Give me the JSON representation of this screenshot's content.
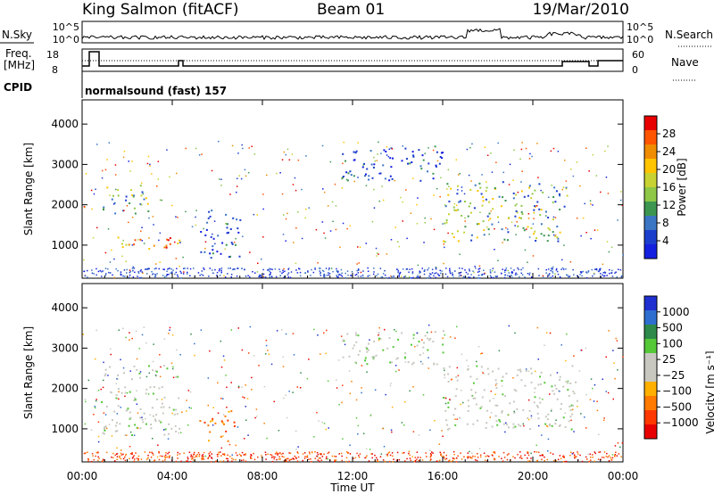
{
  "header": {
    "station": "King Salmon (fitACF)",
    "beam": "Beam 01",
    "date": "19/Mar/2010"
  },
  "top_panels": {
    "nsky_label": "N.Sky",
    "nsky_ticks": [
      "10^5",
      "10^0"
    ],
    "nsearch_label": "N.Search",
    "nsearch_ticks": [
      "10^5",
      "10^0"
    ],
    "freq_label": "Freq.",
    "freq_unit": "[MHz]",
    "freq_ticks": [
      "18",
      "8"
    ],
    "nave_label": "Nave",
    "nave_ticks": [
      "60",
      "0"
    ],
    "cpid_label": "CPID",
    "cpid_value": "normalsound (fast) 157"
  },
  "chart_data": [
    {
      "type": "heatmap",
      "name": "power",
      "ylabel": "Slant Range [km]",
      "y_ticks": [
        "4000",
        "3000",
        "2000",
        "1000"
      ],
      "ylim": [
        180,
        4600
      ],
      "xlim_hours": [
        0,
        24
      ],
      "colorbar": {
        "label": "Power [dB]",
        "ticks": [
          "28",
          "24",
          "20",
          "16",
          "12",
          "8",
          "4"
        ],
        "colors": [
          "#e80000",
          "#ff5500",
          "#f08c00",
          "#ffc400",
          "#c8d232",
          "#8ec846",
          "#3c9650",
          "#3a76c4",
          "#1b3ecc",
          "#1420e0"
        ]
      },
      "regions": [
        {
          "t": [
            1.0,
            4.3
          ],
          "r": [
            900,
            1250
          ],
          "level": "high"
        },
        {
          "t": [
            0.9,
            3.0
          ],
          "r": [
            1700,
            2500
          ],
          "level": "medium"
        },
        {
          "t": [
            5.0,
            7.0
          ],
          "r": [
            700,
            1900
          ],
          "level": "low-medium"
        },
        {
          "t": [
            11.5,
            16.0
          ],
          "r": [
            2600,
            3500
          ],
          "level": "low"
        },
        {
          "t": [
            16.0,
            21.5
          ],
          "r": [
            1100,
            2600
          ],
          "level": "medium"
        }
      ]
    },
    {
      "type": "heatmap",
      "name": "velocity",
      "ylabel": "Slant Range [km]",
      "y_ticks": [
        "4000",
        "3000",
        "2000",
        "1000"
      ],
      "ylim": [
        180,
        4600
      ],
      "xlim_hours": [
        0,
        24
      ],
      "colorbar": {
        "label": "Velocity [m s⁻¹]",
        "ticks": [
          "1000",
          "500",
          "100",
          "25",
          "−25",
          "−100",
          "−500",
          "−1000"
        ],
        "colors": [
          "#1f2fd0",
          "#2e6ed0",
          "#2e8a4a",
          "#55c838",
          "#c8c8c0",
          "#c8c8c0",
          "#ffb000",
          "#ff7a00",
          "#ff3800",
          "#e80000"
        ]
      },
      "regions": [
        {
          "t": [
            0.8,
            4.3
          ],
          "r": [
            850,
            2600
          ],
          "level": "near zero"
        },
        {
          "t": [
            5.2,
            6.8
          ],
          "r": [
            700,
            1500
          ],
          "level": "-100 to -500"
        },
        {
          "t": [
            11.5,
            16.0
          ],
          "r": [
            2600,
            3500
          ],
          "level": "near zero"
        },
        {
          "t": [
            16.0,
            22.0
          ],
          "r": [
            1000,
            2600
          ],
          "level": "near zero"
        }
      ]
    }
  ],
  "x_axis": {
    "label": "Time UT",
    "ticks": [
      "00:00",
      "04:00",
      "08:00",
      "12:00",
      "16:00",
      "20:00",
      "00:00"
    ]
  }
}
